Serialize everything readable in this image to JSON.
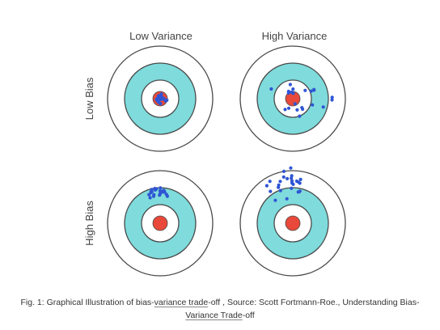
{
  "diagram": {
    "column_labels": [
      "Low Variance",
      "High Variance"
    ],
    "row_labels": [
      "Low Bias",
      "High Bias"
    ],
    "colors": {
      "outer_ring": "#ffffff",
      "middle_ring": "#7fdbdc",
      "inner_ring": "#ffffff",
      "bullseye": "#e8493a",
      "ring_stroke": "#4a4a4a",
      "dots": "#2f55d4",
      "label_text": "#444444"
    },
    "targets": [
      {
        "row": "Low Bias",
        "column": "Low Variance",
        "spread": "tight cluster on bullseye"
      },
      {
        "row": "Low Bias",
        "column": "High Variance",
        "spread": "scattered around bullseye"
      },
      {
        "row": "High Bias",
        "column": "Low Variance",
        "spread": "tight cluster off bullseye"
      },
      {
        "row": "High Bias",
        "column": "High Variance",
        "spread": "scattered off bullseye"
      }
    ]
  },
  "caption": {
    "part1": "Fig. 1: Graphical Illustration of bias-",
    "link1": "variance trade",
    "part2": "-off , Source: Scott Fortmann-Roe., Understanding Bias-",
    "link2": "Variance Trade",
    "part3": "-off"
  }
}
